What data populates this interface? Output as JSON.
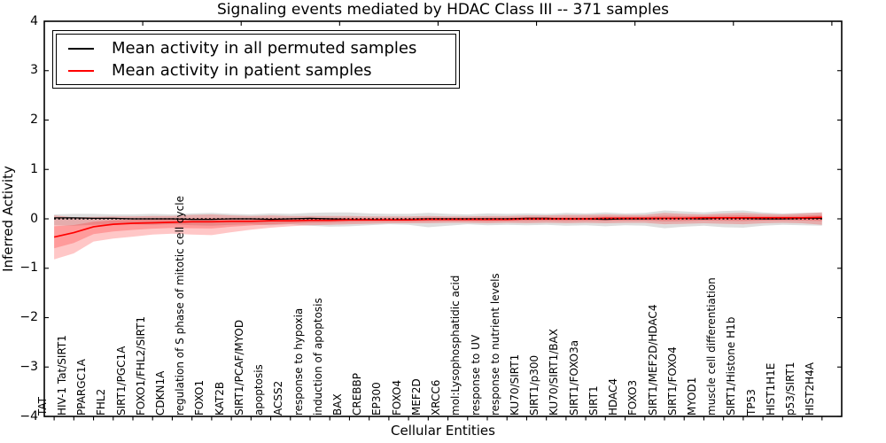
{
  "title": "Signaling events mediated by HDAC Class III -- 371 samples",
  "axes": {
    "xlabel": "Cellular Entities",
    "ylabel": "Inferred Activity"
  },
  "legend": {
    "position": "upper left",
    "items": [
      {
        "label": "Mean activity in all permuted samples",
        "color": "#000000"
      },
      {
        "label": "Mean activity in patient samples",
        "color": "#ff0000"
      }
    ]
  },
  "chart_data": {
    "type": "line",
    "title": "Signaling events mediated by HDAC Class III -- 371 samples",
    "xlabel": "Cellular Entities",
    "ylabel": "Inferred Activity",
    "ylim": [
      -4,
      4
    ],
    "yticks": [
      4,
      3,
      2,
      1,
      0,
      -1,
      -2,
      -3,
      -4
    ],
    "xlim": [
      0,
      40.5
    ],
    "xtick_major": [
      5,
      10,
      15,
      20,
      25,
      30,
      35,
      40
    ],
    "grid": false,
    "categories": [
      "TAT",
      "HIV-1 Tat/SIRT1",
      "PPARGC1A",
      "FHL2",
      "SIRT1/PGC1A",
      "FOXO1/FHL2/SIRT1",
      "CDKN1A",
      "regulation of S phase of mitotic cell cycle",
      "FOXO1",
      "KAT2B",
      "SIRT1/PCAF/MYOD",
      "apoptosis",
      "ACSS2",
      "response to hypoxia",
      "induction of apoptosis",
      "BAX",
      "CREBBP",
      "EP300",
      "FOXO4",
      "MEF2D",
      "XRCC6",
      "mol:Lysophosphatidic acid",
      "response to UV",
      "response to nutrient levels",
      "KU70/SIRT1",
      "SIRT1/p300",
      "KU70/SIRT1/BAX",
      "SIRT1/FOXO3a",
      "SIRT1",
      "HDAC4",
      "FOXO3",
      "SIRT1/MEF2D/HDAC4",
      "SIRT1/FOXO4",
      "MYOD1",
      "muscle cell differentiation",
      "SIRT1/Histone H1b",
      "TP53",
      "HIST1H1E",
      "p53/SIRT1",
      "HIST2H4A"
    ],
    "series": [
      {
        "name": "Mean activity in all permuted samples",
        "color": "#000000",
        "width": 1.2,
        "values": [
          0.02,
          0.02,
          0.01,
          0.01,
          0.0,
          0.0,
          0.0,
          -0.01,
          -0.01,
          0.0,
          0.0,
          -0.01,
          0.0,
          0.01,
          0.0,
          -0.01,
          -0.01,
          -0.02,
          -0.01,
          0.0,
          0.0,
          0.0,
          0.0,
          0.0,
          0.01,
          0.01,
          0.0,
          0.0,
          -0.01,
          0.0,
          0.0,
          0.01,
          0.01,
          0.0,
          0.02,
          0.01,
          0.0,
          0.0,
          0.01,
          0.01
        ]
      },
      {
        "name": "Mean activity in patient samples",
        "color": "#ff0000",
        "width": 1.7,
        "values": [
          -0.37,
          -0.28,
          -0.16,
          -0.11,
          -0.09,
          -0.08,
          -0.07,
          -0.06,
          -0.06,
          -0.05,
          -0.05,
          -0.04,
          -0.04,
          -0.03,
          -0.03,
          -0.02,
          -0.02,
          -0.02,
          -0.02,
          -0.01,
          -0.01,
          -0.01,
          -0.01,
          -0.01,
          0.0,
          0.0,
          0.0,
          0.0,
          0.01,
          0.01,
          0.01,
          0.01,
          0.01,
          0.02,
          0.02,
          0.02,
          0.02,
          0.02,
          0.02,
          0.03
        ]
      }
    ],
    "bands": [
      {
        "name": "permuted samples std band",
        "color": "#000000",
        "opacity": 0.13,
        "upper": [
          0.09,
          0.1,
          0.1,
          0.09,
          0.09,
          0.1,
          0.09,
          0.11,
          0.12,
          0.1,
          0.09,
          0.11,
          0.1,
          0.12,
          0.13,
          0.13,
          0.11,
          0.1,
          0.1,
          0.12,
          0.1,
          0.09,
          0.11,
          0.1,
          0.11,
          0.1,
          0.12,
          0.11,
          0.13,
          0.11,
          0.12,
          0.17,
          0.15,
          0.13,
          0.16,
          0.17,
          0.13,
          0.11,
          0.12,
          0.13
        ],
        "lower": [
          -0.13,
          -0.14,
          -0.12,
          -0.11,
          -0.11,
          -0.12,
          -0.11,
          -0.13,
          -0.14,
          -0.12,
          -0.11,
          -0.13,
          -0.11,
          -0.14,
          -0.16,
          -0.15,
          -0.13,
          -0.11,
          -0.12,
          -0.17,
          -0.14,
          -0.11,
          -0.13,
          -0.12,
          -0.13,
          -0.12,
          -0.14,
          -0.13,
          -0.15,
          -0.13,
          -0.14,
          -0.19,
          -0.16,
          -0.14,
          -0.17,
          -0.18,
          -0.14,
          -0.12,
          -0.13,
          -0.14
        ]
      },
      {
        "name": "patient samples std band",
        "color": "#ff0000",
        "opacity": 0.22,
        "upper": [
          0.07,
          0.03,
          0.04,
          0.05,
          0.05,
          0.06,
          0.06,
          0.08,
          0.09,
          0.07,
          0.06,
          0.07,
          0.06,
          0.06,
          0.06,
          0.06,
          0.05,
          0.05,
          0.05,
          0.06,
          0.05,
          0.05,
          0.06,
          0.06,
          0.07,
          0.07,
          0.08,
          0.08,
          0.09,
          0.08,
          0.08,
          0.12,
          0.1,
          0.09,
          0.11,
          0.12,
          0.1,
          0.09,
          0.11,
          0.13
        ],
        "lower": [
          -0.82,
          -0.7,
          -0.46,
          -0.4,
          -0.36,
          -0.32,
          -0.3,
          -0.32,
          -0.33,
          -0.27,
          -0.22,
          -0.18,
          -0.15,
          -0.13,
          -0.12,
          -0.11,
          -0.1,
          -0.09,
          -0.09,
          -0.09,
          -0.08,
          -0.08,
          -0.09,
          -0.08,
          -0.09,
          -0.08,
          -0.09,
          -0.08,
          -0.09,
          -0.08,
          -0.08,
          -0.11,
          -0.1,
          -0.09,
          -0.1,
          -0.11,
          -0.09,
          -0.08,
          -0.09,
          -0.12
        ]
      }
    ],
    "band_inner_scale": 0.5,
    "zero_line": {
      "value": 0,
      "style": "dotted",
      "color": "#000000"
    },
    "legend_position": "upper left"
  }
}
